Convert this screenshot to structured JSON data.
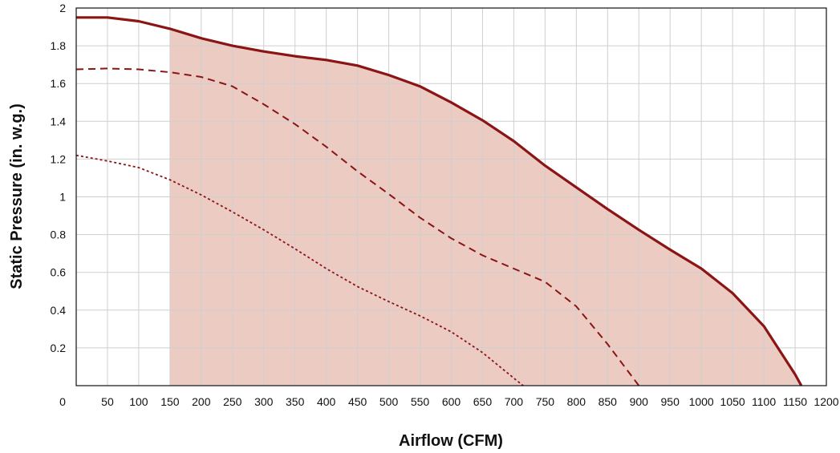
{
  "chart_data": {
    "type": "area",
    "title": "",
    "xlabel": "Airflow (CFM)",
    "ylabel": "Static Pressure (in. w.g.)",
    "xlim": [
      0,
      1200
    ],
    "ylim": [
      0,
      2
    ],
    "x_ticks": [
      "0",
      "50",
      "100",
      "150",
      "200",
      "250",
      "300",
      "350",
      "400",
      "450",
      "500",
      "550",
      "600",
      "650",
      "700",
      "750",
      "800",
      "850",
      "900",
      "950",
      "1000",
      "1050",
      "1100",
      "1150",
      "1200"
    ],
    "y_ticks": [
      "0.2",
      "0.4",
      "0.6",
      "0.8",
      "1",
      "1.2",
      "1.4",
      "1.6",
      "1.8",
      "2"
    ],
    "grid": true,
    "shaded_region": {
      "x_min": 150,
      "fill": "#eccbc3"
    },
    "series": [
      {
        "style": "solid",
        "color": "#8b1414",
        "x": [
          0,
          50,
          100,
          150,
          200,
          250,
          300,
          350,
          400,
          450,
          500,
          550,
          600,
          650,
          700,
          750,
          800,
          850,
          900,
          950,
          1000,
          1050,
          1100,
          1150,
          1160
        ],
        "y": [
          1.95,
          1.95,
          1.93,
          1.89,
          1.84,
          1.8,
          1.77,
          1.745,
          1.725,
          1.695,
          1.645,
          1.585,
          1.5,
          1.405,
          1.295,
          1.165,
          1.05,
          0.935,
          0.825,
          0.72,
          0.62,
          0.49,
          0.315,
          0.06,
          0
        ]
      },
      {
        "style": "dashed",
        "color": "#8b1414",
        "x": [
          0,
          50,
          100,
          150,
          200,
          250,
          300,
          350,
          400,
          450,
          500,
          550,
          600,
          650,
          700,
          750,
          800,
          850,
          900
        ],
        "y": [
          1.675,
          1.68,
          1.675,
          1.66,
          1.635,
          1.585,
          1.49,
          1.385,
          1.265,
          1.135,
          1.015,
          0.89,
          0.78,
          0.69,
          0.62,
          0.55,
          0.42,
          0.22,
          0
        ]
      },
      {
        "style": "dotted",
        "color": "#8b1414",
        "x": [
          0,
          50,
          100,
          150,
          200,
          250,
          300,
          350,
          400,
          450,
          500,
          550,
          600,
          650,
          700,
          715
        ],
        "y": [
          1.22,
          1.19,
          1.155,
          1.09,
          1.01,
          0.92,
          0.825,
          0.725,
          0.62,
          0.525,
          0.445,
          0.37,
          0.285,
          0.175,
          0.04,
          0
        ]
      }
    ]
  }
}
